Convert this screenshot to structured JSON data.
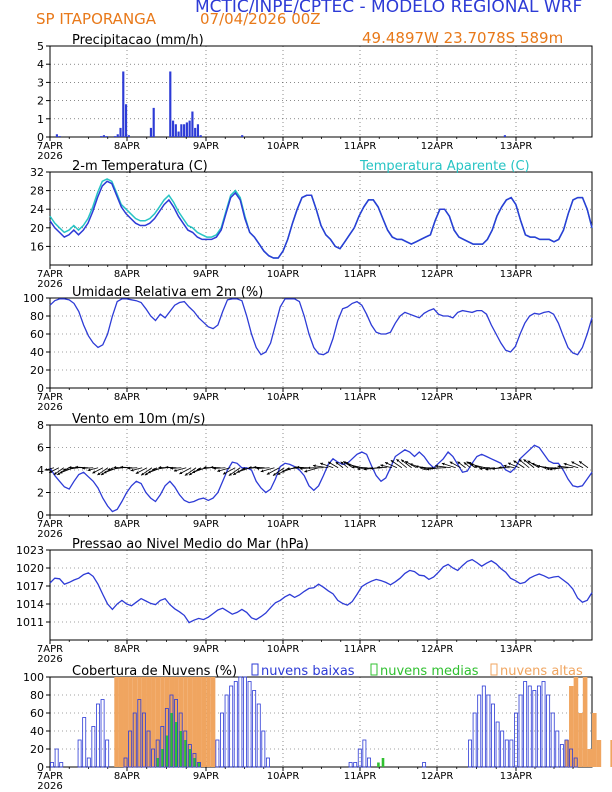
{
  "header": {
    "title": "MCTIC/INPE/CPTEC - MODELO REGIONAL WRF",
    "location": "SP ITAPORANGA",
    "run": "07/04/2026 00Z",
    "coords": "49.4897W 23.7078S 589m"
  },
  "colors": {
    "blue": "#2d3bd6",
    "cyan": "#27c4c4",
    "orange": "#f0a560",
    "green": "#30c030",
    "accent_text": "#e8791a"
  },
  "chart_data": [
    {
      "type": "bar",
      "title": "Precipitacao (mm/h)",
      "x_labels": [
        "7APR\n2026",
        "8APR",
        "9APR",
        "10APR",
        "11APR",
        "12APR",
        "13APR"
      ],
      "ylim": [
        0,
        5
      ],
      "yticks": [
        0,
        1,
        2,
        3,
        4,
        5
      ],
      "grid": true,
      "values": [
        0,
        0,
        0.15,
        0.05,
        0,
        0,
        0,
        0,
        0,
        0,
        0,
        0,
        0,
        0,
        0,
        0,
        0,
        0,
        0.05,
        0.1,
        0.05,
        0,
        0,
        0.05,
        0.15,
        0.5,
        3.6,
        1.8,
        0.1,
        0,
        0,
        0,
        0,
        0,
        0,
        0,
        0.5,
        1.6,
        0,
        0,
        0,
        0,
        0,
        3.6,
        0.9,
        0.7,
        0.3,
        0.7,
        0.7,
        0.8,
        0.9,
        1.4,
        0.5,
        0.7,
        0.1,
        0,
        0,
        0,
        0,
        0,
        0,
        0,
        0,
        0,
        0,
        0,
        0,
        0,
        0,
        0.1,
        0,
        0,
        0,
        0,
        0,
        0,
        0,
        0,
        0,
        0,
        0,
        0,
        0,
        0,
        0,
        0,
        0,
        0,
        0,
        0,
        0,
        0,
        0,
        0,
        0,
        0,
        0,
        0,
        0,
        0,
        0,
        0,
        0,
        0,
        0,
        0,
        0,
        0,
        0,
        0,
        0,
        0,
        0,
        0,
        0,
        0,
        0,
        0,
        0,
        0,
        0,
        0,
        0,
        0,
        0,
        0,
        0,
        0,
        0,
        0,
        0,
        0,
        0,
        0,
        0,
        0,
        0,
        0,
        0,
        0,
        0,
        0,
        0,
        0,
        0,
        0,
        0,
        0,
        0,
        0,
        0,
        0,
        0,
        0,
        0,
        0,
        0,
        0,
        0,
        0,
        0,
        0,
        0,
        0,
        0.1,
        0,
        0,
        0,
        0,
        0,
        0,
        0,
        0,
        0,
        0,
        0,
        0,
        0,
        0,
        0,
        0,
        0,
        0,
        0,
        0,
        0,
        0,
        0,
        0,
        0,
        0,
        0,
        0,
        0,
        0,
        0
      ]
    },
    {
      "type": "line",
      "title": "2-m Temperatura (C)",
      "legend": "Temperatura Aparente (C)",
      "x_labels": [
        "7APR\n2026",
        "8APR",
        "9APR",
        "10APR",
        "11APR",
        "12APR",
        "13APR"
      ],
      "ylim": [
        12,
        32
      ],
      "yticks": [
        16,
        20,
        24,
        28,
        32
      ],
      "grid": true,
      "series": [
        {
          "values": [
            21.5,
            20,
            19,
            18,
            18.5,
            19.5,
            18.5,
            19.5,
            21,
            23.5,
            26.5,
            29,
            30,
            29.5,
            27,
            24.5,
            23,
            22,
            21,
            20.5,
            20.5,
            21,
            22,
            23.5,
            25,
            26,
            24.5,
            22.5,
            21,
            19.5,
            19,
            18,
            17.5,
            17.5,
            17.5,
            18,
            19.5,
            23,
            26.5,
            27.5,
            26,
            22,
            19,
            18,
            16.5,
            15,
            14,
            13.5,
            13.5,
            15,
            17.5,
            21,
            24,
            26.5,
            27,
            27,
            24,
            20.5,
            18.5,
            17.5,
            16,
            15.5,
            17,
            18.5,
            20,
            22.5,
            24.5,
            26,
            26,
            24.5,
            22,
            19.5,
            18,
            17.5,
            17.5,
            17,
            16.5,
            17,
            17.5,
            18,
            18.5,
            21.5,
            24,
            24,
            22.5,
            19.5,
            18,
            17.5,
            17,
            16.5,
            16.5,
            16.5,
            17.5,
            19.5,
            22.5,
            24.5,
            26,
            26.5,
            25,
            21.5,
            18.5,
            18,
            18,
            17.5,
            17.5,
            17.5,
            17,
            17.5,
            19.5,
            23,
            26,
            26.5,
            26.5,
            24,
            20
          ]
        },
        {
          "values": [
            22.5,
            21,
            20,
            19,
            19.5,
            20.5,
            19.5,
            20.5,
            22,
            24.5,
            27.5,
            30,
            30.5,
            30,
            27.5,
            25,
            24,
            23,
            22,
            21.5,
            21.5,
            22,
            23,
            24.5,
            26,
            27,
            25.5,
            23.5,
            22,
            20.5,
            20,
            19,
            18.5,
            18,
            18,
            18.5,
            20,
            23.5,
            27,
            28,
            26.5,
            22.5,
            19,
            18,
            16.5,
            15,
            14,
            13.5,
            13.5,
            15,
            17.5,
            21,
            24,
            26.5,
            27,
            27,
            24,
            20.5,
            18.5,
            17.5,
            16,
            15.5,
            17,
            18.5,
            20,
            22.5,
            24.5,
            26,
            26,
            24.5,
            22,
            19.5,
            18,
            17.5,
            17.5,
            17,
            16.5,
            17,
            17.5,
            18,
            18.5,
            21.5,
            24,
            24,
            22.5,
            19.5,
            18,
            17.5,
            17,
            16.5,
            16.5,
            16.5,
            17.5,
            19.5,
            22.5,
            24.5,
            26,
            26.5,
            25,
            21.5,
            18.5,
            18,
            18,
            17.5,
            17.5,
            17.5,
            17,
            17.5,
            19.5,
            23,
            26,
            26.5,
            26.5,
            24,
            20
          ]
        }
      ]
    },
    {
      "type": "line",
      "title": "Umidade Relativa em 2m (%)",
      "x_labels": [
        "7APR\n2026",
        "8APR",
        "9APR",
        "10APR",
        "11APR",
        "12APR",
        "13APR"
      ],
      "ylim": [
        0,
        100
      ],
      "yticks": [
        0,
        20,
        40,
        60,
        80,
        100
      ],
      "grid": true,
      "values": [
        92,
        97,
        99,
        99,
        98,
        94,
        85,
        70,
        58,
        50,
        45,
        48,
        60,
        80,
        96,
        99,
        99,
        98,
        97,
        95,
        88,
        80,
        75,
        82,
        78,
        85,
        92,
        95,
        96,
        90,
        85,
        78,
        73,
        68,
        66,
        70,
        85,
        98,
        99,
        99,
        97,
        80,
        60,
        45,
        37,
        40,
        50,
        70,
        90,
        99,
        99,
        99,
        96,
        80,
        60,
        45,
        38,
        37,
        40,
        55,
        75,
        88,
        90,
        94,
        96,
        92,
        82,
        70,
        62,
        60,
        60,
        62,
        72,
        80,
        84,
        82,
        80,
        78,
        83,
        86,
        88,
        82,
        80,
        80,
        78,
        84,
        86,
        85,
        84,
        86,
        86,
        82,
        70,
        60,
        50,
        42,
        40,
        46,
        60,
        72,
        80,
        83,
        82,
        84,
        85,
        82,
        72,
        58,
        45,
        39,
        37,
        45,
        60,
        78
      ]
    },
    {
      "type": "line",
      "title": "Vento em 10m (m/s)",
      "x_labels": [
        "7APR\n2026",
        "8APR",
        "9APR",
        "10APR",
        "11APR",
        "12APR",
        "13APR"
      ],
      "ylim": [
        0,
        8
      ],
      "yticks": [
        0,
        2,
        4,
        6,
        8
      ],
      "grid": true,
      "wind_arrows": true,
      "values": [
        4.2,
        3.5,
        3.0,
        2.5,
        2.3,
        3.0,
        3.6,
        3.8,
        3.4,
        3.0,
        2.4,
        1.5,
        0.8,
        0.3,
        0.5,
        1.2,
        2.0,
        2.6,
        3.0,
        2.8,
        2.0,
        1.5,
        1.2,
        1.8,
        2.6,
        3.0,
        2.5,
        1.8,
        1.3,
        1.1,
        1.2,
        1.4,
        1.5,
        1.3,
        1.5,
        2.0,
        3.0,
        4.0,
        4.7,
        4.6,
        4.2,
        4.2,
        4.0,
        3.0,
        2.4,
        2.0,
        2.3,
        3.2,
        4.3,
        4.6,
        4.5,
        4.3,
        4.0,
        3.5,
        2.6,
        2.2,
        2.6,
        3.5,
        4.5,
        5.0,
        4.7,
        4.5,
        4.6,
        5.0,
        5.4,
        5.6,
        5.4,
        4.4,
        3.5,
        3.0,
        3.3,
        4.2,
        5.2,
        5.5,
        5.8,
        5.6,
        5.2,
        5.6,
        5.2,
        4.6,
        4.2,
        4.6,
        5.0,
        5.6,
        5.2,
        4.5,
        3.8,
        3.9,
        4.6,
        5.2,
        5.4,
        5.2,
        5.0,
        4.8,
        4.6,
        4.0,
        3.8,
        4.2,
        5.0,
        5.4,
        5.8,
        6.2,
        6.0,
        5.4,
        4.8,
        4.6,
        4.6,
        4.0,
        3.2,
        2.6,
        2.5,
        2.6,
        3.2,
        3.8
      ]
    },
    {
      "type": "line",
      "title": "Pressao ao Nivel Medio do Mar (hPa)",
      "x_labels": [
        "7APR\n2026",
        "8APR",
        "9APR",
        "10APR",
        "11APR",
        "12APR",
        "13APR"
      ],
      "ylim": [
        1008,
        1023
      ],
      "yticks": [
        1011,
        1014,
        1017,
        1020,
        1023
      ],
      "grid": true,
      "values": [
        1017.5,
        1018.3,
        1018.2,
        1017.3,
        1017.6,
        1018.0,
        1018.3,
        1018.9,
        1019.2,
        1018.6,
        1017.3,
        1015.6,
        1014.0,
        1013.1,
        1014.0,
        1014.6,
        1014.0,
        1013.7,
        1014.3,
        1014.9,
        1014.5,
        1014.1,
        1013.9,
        1014.6,
        1014.9,
        1013.9,
        1013.2,
        1012.7,
        1012.1,
        1010.9,
        1011.3,
        1011.6,
        1011.4,
        1011.8,
        1012.4,
        1013.0,
        1013.3,
        1012.8,
        1012.3,
        1012.6,
        1013.1,
        1012.6,
        1011.7,
        1011.4,
        1011.9,
        1012.5,
        1013.4,
        1014.2,
        1014.6,
        1015.2,
        1015.6,
        1015.1,
        1015.5,
        1016.1,
        1016.6,
        1016.7,
        1017.3,
        1016.8,
        1016.2,
        1015.7,
        1014.6,
        1014.1,
        1013.8,
        1014.4,
        1015.6,
        1016.9,
        1017.4,
        1017.8,
        1018.1,
        1017.9,
        1017.6,
        1017.2,
        1017.7,
        1018.3,
        1019.1,
        1019.6,
        1019.4,
        1018.8,
        1018.7,
        1018.1,
        1018.5,
        1019.3,
        1020.2,
        1020.6,
        1020.0,
        1019.6,
        1020.4,
        1021.1,
        1021.4,
        1020.9,
        1020.3,
        1020.8,
        1021.2,
        1020.7,
        1019.9,
        1019.3,
        1018.3,
        1017.9,
        1017.4,
        1017.6,
        1018.3,
        1018.7,
        1019.0,
        1018.7,
        1018.3,
        1018.5,
        1018.6,
        1018.0,
        1017.4,
        1016.5,
        1015.0,
        1014.3,
        1014.6,
        1015.9
      ]
    },
    {
      "type": "bar",
      "title": "Cobertura de Nuvens (%)",
      "x_labels": [
        "7APR\n2026",
        "8APR",
        "9APR",
        "10APR",
        "11APR",
        "12APR",
        "13APR"
      ],
      "ylim": [
        0,
        100
      ],
      "yticks": [
        0,
        20,
        40,
        60,
        80,
        100
      ],
      "grid": true,
      "series": [
        {
          "name": "nuvens baixas",
          "values": [
            5,
            20,
            5,
            0,
            0,
            0,
            30,
            55,
            10,
            45,
            70,
            75,
            30,
            0,
            0,
            0,
            10,
            40,
            60,
            75,
            60,
            40,
            20,
            30,
            45,
            65,
            80,
            75,
            60,
            40,
            25,
            15,
            5,
            0,
            0,
            0,
            30,
            60,
            80,
            90,
            95,
            100,
            100,
            95,
            85,
            70,
            40,
            10,
            0,
            0,
            0,
            0,
            0,
            0,
            0,
            0,
            0,
            0,
            0,
            0,
            0,
            0,
            0,
            0,
            0,
            5,
            5,
            20,
            30,
            10,
            0,
            0,
            0,
            0,
            0,
            0,
            0,
            0,
            0,
            0,
            0,
            5,
            0,
            0,
            0,
            0,
            0,
            0,
            0,
            0,
            0,
            30,
            60,
            80,
            90,
            80,
            70,
            50,
            40,
            30,
            30,
            60,
            80,
            95,
            90,
            85,
            90,
            95,
            80,
            60,
            40,
            25,
            30,
            20,
            10,
            0,
            0,
            0
          ]
        },
        {
          "name": "nuvens medias",
          "values": [
            0,
            0,
            0,
            0,
            0,
            0,
            0,
            0,
            0,
            0,
            0,
            0,
            0,
            0,
            0,
            0,
            0,
            0,
            0,
            0,
            0,
            0,
            0,
            10,
            20,
            35,
            60,
            50,
            40,
            30,
            20,
            10,
            5,
            0,
            0,
            0,
            0,
            0,
            0,
            0,
            0,
            0,
            0,
            0,
            0,
            0,
            0,
            0,
            0,
            0,
            0,
            0,
            0,
            0,
            0,
            0,
            0,
            0,
            0,
            0,
            0,
            0,
            0,
            0,
            0,
            0,
            0,
            0,
            0,
            0,
            0,
            5,
            10,
            0,
            0,
            0,
            0,
            0,
            0,
            0,
            0,
            0,
            0,
            0,
            0,
            0,
            0,
            0,
            0,
            0,
            0,
            0,
            0,
            0,
            0,
            0,
            0,
            0,
            0,
            0,
            0,
            0,
            0,
            0,
            0,
            0,
            0,
            0,
            0,
            0,
            0,
            0,
            0,
            0,
            0,
            0,
            0,
            0
          ]
        },
        {
          "name": "nuvens altas",
          "values": [
            0,
            0,
            0,
            0,
            0,
            0,
            0,
            0,
            0,
            0,
            0,
            0,
            0,
            0,
            100,
            100,
            100,
            100,
            100,
            100,
            100,
            100,
            100,
            100,
            100,
            100,
            100,
            100,
            100,
            100,
            100,
            100,
            100,
            100,
            100,
            100,
            0,
            0,
            0,
            0,
            0,
            0,
            0,
            0,
            0,
            0,
            0,
            0,
            0,
            0,
            0,
            0,
            0,
            0,
            0,
            0,
            0,
            0,
            0,
            0,
            0,
            0,
            0,
            0,
            0,
            0,
            0,
            0,
            0,
            0,
            0,
            0,
            0,
            0,
            0,
            0,
            0,
            0,
            0,
            0,
            0,
            0,
            0,
            0,
            0,
            0,
            0,
            0,
            0,
            0,
            0,
            0,
            0,
            0,
            0,
            0,
            0,
            0,
            0,
            0,
            0,
            0,
            0,
            0,
            0,
            0,
            0,
            0,
            0,
            0,
            0,
            0,
            30,
            90,
            100,
            60,
            100,
            20,
            60,
            30,
            0,
            0,
            30,
            50,
            100,
            20
          ]
        }
      ]
    }
  ]
}
